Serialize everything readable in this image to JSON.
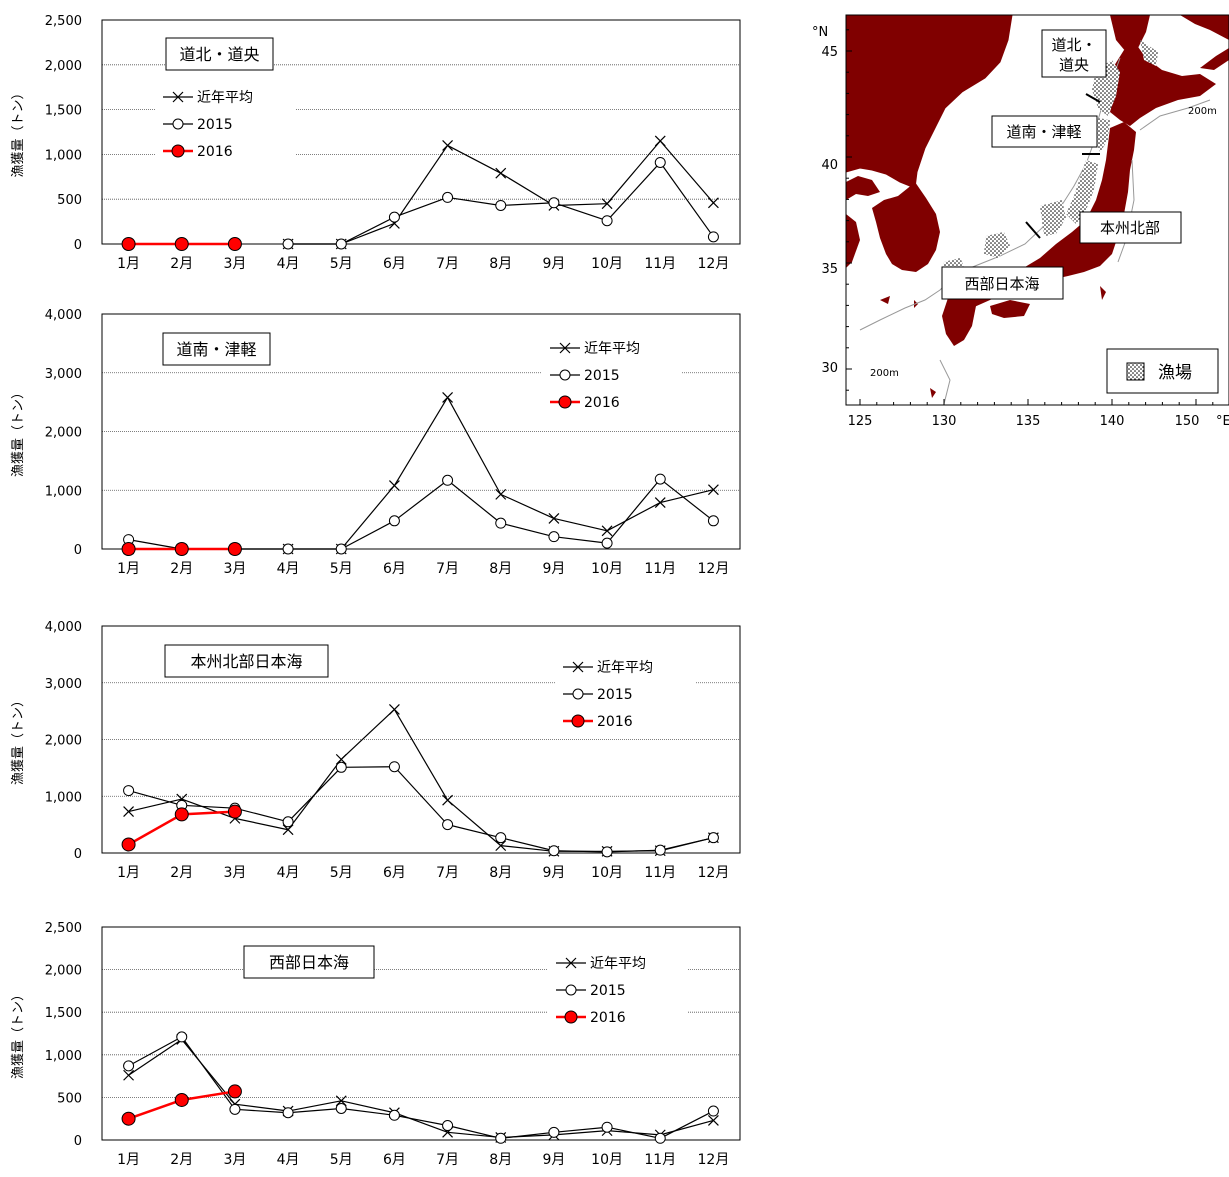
{
  "chart_data": [
    {
      "type": "line",
      "title": "道北・道央",
      "ylabel": "漁獲量（トン）",
      "ylim": [
        0,
        2500
      ],
      "yticks": [
        "0",
        "500",
        "1,000",
        "1,500",
        "2,000",
        "2,500"
      ],
      "grid": true,
      "legend_position": "top-left",
      "categories": [
        "1月",
        "2月",
        "3月",
        "4月",
        "5月",
        "6月",
        "7月",
        "8月",
        "9月",
        "10月",
        "11月",
        "12月"
      ],
      "series": [
        {
          "name": "近年平均",
          "marker": "x",
          "color": "#000000",
          "values": [
            null,
            null,
            null,
            0,
            0,
            230,
            1100,
            790,
            430,
            450,
            1150,
            460
          ]
        },
        {
          "name": "2015",
          "marker": "o",
          "color": "#000000",
          "values": [
            null,
            null,
            null,
            0,
            0,
            300,
            520,
            430,
            460,
            260,
            910,
            80
          ]
        },
        {
          "name": "2016",
          "marker": "dot",
          "color": "#ff0000",
          "values": [
            0,
            0,
            0,
            null,
            null,
            null,
            null,
            null,
            null,
            null,
            null,
            null
          ]
        }
      ]
    },
    {
      "type": "line",
      "title": "道南・津軽",
      "ylabel": "漁獲量（トン）",
      "ylim": [
        0,
        4000
      ],
      "yticks": [
        "0",
        "1,000",
        "2,000",
        "3,000",
        "4,000"
      ],
      "grid": true,
      "legend_position": "top-right",
      "categories": [
        "1月",
        "2月",
        "3月",
        "4月",
        "5月",
        "6月",
        "7月",
        "8月",
        "9月",
        "10月",
        "11月",
        "12月"
      ],
      "series": [
        {
          "name": "近年平均",
          "marker": "x",
          "color": "#000000",
          "values": [
            0,
            0,
            0,
            0,
            0,
            1080,
            2580,
            930,
            520,
            310,
            790,
            1010
          ]
        },
        {
          "name": "2015",
          "marker": "o",
          "color": "#000000",
          "values": [
            160,
            0,
            0,
            0,
            0,
            480,
            1170,
            440,
            210,
            100,
            1190,
            480
          ]
        },
        {
          "name": "2016",
          "marker": "dot",
          "color": "#ff0000",
          "values": [
            0,
            0,
            0,
            null,
            null,
            null,
            null,
            null,
            null,
            null,
            null,
            null
          ]
        }
      ]
    },
    {
      "type": "line",
      "title": "本州北部日本海",
      "ylabel": "漁獲量（トン）",
      "ylim": [
        0,
        4000
      ],
      "yticks": [
        "0",
        "1,000",
        "2,000",
        "3,000",
        "4,000"
      ],
      "grid": true,
      "legend_position": "top-right",
      "categories": [
        "1月",
        "2月",
        "3月",
        "4月",
        "5月",
        "6月",
        "7月",
        "8月",
        "9月",
        "10月",
        "11月",
        "12月"
      ],
      "series": [
        {
          "name": "近年平均",
          "marker": "x",
          "color": "#000000",
          "values": [
            730,
            950,
            610,
            410,
            1650,
            2530,
            930,
            130,
            30,
            30,
            40,
            270
          ]
        },
        {
          "name": "2015",
          "marker": "o",
          "color": "#000000",
          "values": [
            1100,
            840,
            790,
            550,
            1510,
            1520,
            500,
            270,
            40,
            20,
            50,
            270
          ]
        },
        {
          "name": "2016",
          "marker": "dot",
          "color": "#ff0000",
          "values": [
            150,
            680,
            730,
            null,
            null,
            null,
            null,
            null,
            null,
            null,
            null,
            null
          ]
        }
      ]
    },
    {
      "type": "line",
      "title": "西部日本海",
      "ylabel": "漁獲量（トン）",
      "ylim": [
        0,
        2500
      ],
      "yticks": [
        "0",
        "500",
        "1,000",
        "1,500",
        "2,000",
        "2,500"
      ],
      "grid": true,
      "legend_position": "top-right",
      "categories": [
        "1月",
        "2月",
        "3月",
        "4月",
        "5月",
        "6月",
        "7月",
        "8月",
        "9月",
        "10月",
        "11月",
        "12月"
      ],
      "series": [
        {
          "name": "近年平均",
          "marker": "x",
          "color": "#000000",
          "values": [
            760,
            1180,
            420,
            340,
            460,
            320,
            90,
            30,
            60,
            110,
            60,
            230
          ]
        },
        {
          "name": "2015",
          "marker": "o",
          "color": "#000000",
          "values": [
            870,
            1210,
            360,
            320,
            370,
            290,
            170,
            20,
            90,
            150,
            20,
            340
          ]
        },
        {
          "name": "2016",
          "marker": "dot",
          "color": "#ff0000",
          "values": [
            250,
            470,
            570,
            null,
            null,
            null,
            null,
            null,
            null,
            null,
            null,
            null
          ]
        }
      ]
    }
  ],
  "map": {
    "lat_unit": "°N",
    "lon_unit": "°E",
    "lat_ticks": [
      "45",
      "40",
      "35",
      "30"
    ],
    "lon_ticks": [
      "125",
      "130",
      "135",
      "140",
      "150"
    ],
    "depth_labels": [
      "200m",
      "200m"
    ],
    "region_labels": [
      "道北・",
      "道央",
      "道南・津軽",
      "本州北部",
      "西部日本海"
    ],
    "legend_label": "漁場",
    "colors": {
      "land": "#800000",
      "sea": "#ffffff"
    }
  }
}
